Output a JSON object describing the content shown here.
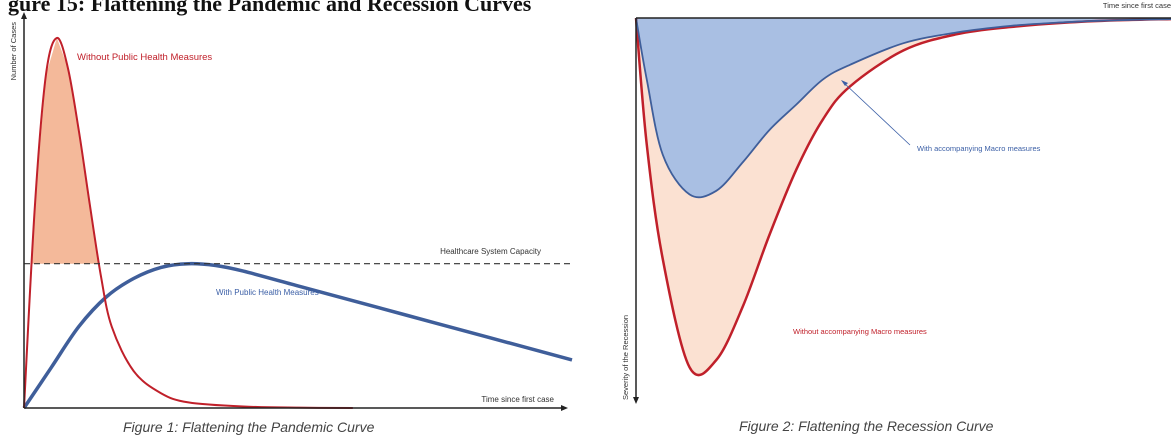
{
  "heading": "gure 15: Flattening the Pandemic and Recession Curves",
  "figure1": {
    "caption": "Figure 1: Flattening the Pandemic Curve",
    "capacity_label": "Healthcare System Capacity",
    "without_label": "Without Public Health Measures",
    "with_label": "With Public Health Measures",
    "xlabel": "Time since first case",
    "ylabel": "Number of Cases"
  },
  "figure2": {
    "caption": "Figure 2: Flattening the Recession Curve",
    "without_label": "Without accompanying Macro measures",
    "with_label": "With accompanying Macro measures",
    "xlabel": "Time since first case",
    "ylabel": "Severity of the Recession"
  },
  "colors": {
    "red": "#c0202a",
    "blue": "#3f5e9a",
    "orange_fill": "#f4b99a",
    "peach_fill": "#fbe1d2",
    "blue_fill": "#a9bfe3",
    "text_red": "#c0202a",
    "text_blue": "#3b5fa6"
  },
  "chart_data": [
    {
      "type": "line",
      "title": "Flattening the Pandemic Curve",
      "xlabel": "Time since first case",
      "ylabel": "Number of Cases",
      "xlim": [
        0,
        1
      ],
      "ylim": [
        0,
        1
      ],
      "grid": false,
      "capacity": 0.39,
      "series": [
        {
          "name": "Without Public Health Measures",
          "x": [
            0,
            0.02,
            0.04,
            0.06,
            0.08,
            0.1,
            0.12,
            0.14,
            0.16,
            0.2,
            0.25,
            0.3,
            0.4,
            0.5,
            0.6
          ],
          "y": [
            0,
            0.55,
            0.9,
            1.0,
            0.92,
            0.75,
            0.55,
            0.36,
            0.22,
            0.1,
            0.04,
            0.015,
            0.004,
            0.001,
            0.0
          ]
        },
        {
          "name": "With Public Health Measures",
          "x": [
            0,
            0.05,
            0.1,
            0.15,
            0.2,
            0.25,
            0.3,
            0.35,
            0.4,
            0.5,
            0.6,
            0.7,
            0.8,
            0.9,
            1.0
          ],
          "y": [
            0,
            0.11,
            0.22,
            0.3,
            0.35,
            0.38,
            0.39,
            0.385,
            0.37,
            0.33,
            0.29,
            0.25,
            0.21,
            0.17,
            0.13
          ]
        }
      ]
    },
    {
      "type": "area",
      "title": "Flattening the Recession Curve",
      "xlabel": "Time since first case",
      "ylabel": "Severity of the Recession",
      "xlim": [
        0,
        1
      ],
      "ylim": [
        0,
        1
      ],
      "grid": false,
      "series": [
        {
          "name": "Without accompanying Macro measures",
          "x": [
            0,
            0.02,
            0.05,
            0.1,
            0.15,
            0.2,
            0.25,
            0.3,
            0.35,
            0.4,
            0.5,
            0.6,
            0.7,
            0.8,
            0.9,
            1.0
          ],
          "y": [
            0,
            0.35,
            0.67,
            0.97,
            0.95,
            0.8,
            0.6,
            0.42,
            0.28,
            0.19,
            0.09,
            0.045,
            0.025,
            0.013,
            0.006,
            0.003
          ]
        },
        {
          "name": "With accompanying Macro measures",
          "x": [
            0,
            0.02,
            0.05,
            0.1,
            0.15,
            0.2,
            0.25,
            0.3,
            0.35,
            0.4,
            0.5,
            0.6,
            0.7,
            0.8,
            0.9,
            1.0
          ],
          "y": [
            0,
            0.17,
            0.38,
            0.49,
            0.48,
            0.4,
            0.31,
            0.24,
            0.17,
            0.13,
            0.07,
            0.04,
            0.022,
            0.012,
            0.006,
            0.003
          ]
        }
      ]
    }
  ]
}
